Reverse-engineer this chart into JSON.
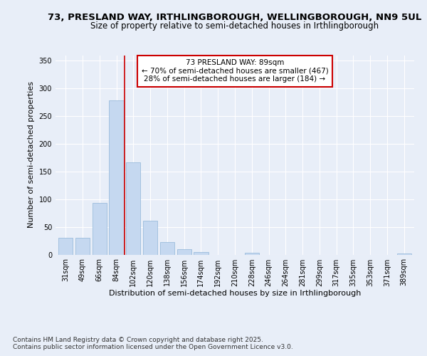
{
  "title_line1": "73, PRESLAND WAY, IRTHLINGBOROUGH, WELLINGBOROUGH, NN9 5UL",
  "title_line2": "Size of property relative to semi-detached houses in Irthlingborough",
  "xlabel": "Distribution of semi-detached houses by size in Irthlingborough",
  "ylabel": "Number of semi-detached properties",
  "categories": [
    "31sqm",
    "49sqm",
    "66sqm",
    "84sqm",
    "102sqm",
    "120sqm",
    "138sqm",
    "156sqm",
    "174sqm",
    "192sqm",
    "210sqm",
    "228sqm",
    "246sqm",
    "264sqm",
    "281sqm",
    "299sqm",
    "317sqm",
    "335sqm",
    "353sqm",
    "371sqm",
    "389sqm"
  ],
  "values": [
    30,
    30,
    93,
    278,
    167,
    61,
    22,
    10,
    5,
    0,
    0,
    3,
    0,
    0,
    0,
    0,
    0,
    0,
    0,
    0,
    2
  ],
  "bar_color": "#c5d8f0",
  "bar_edge_color": "#9bbcdc",
  "vline_x": 3.5,
  "vline_color": "#cc0000",
  "annotation_title": "73 PRESLAND WAY: 89sqm",
  "annotation_line2": "← 70% of semi-detached houses are smaller (467)",
  "annotation_line3": "28% of semi-detached houses are larger (184) →",
  "annotation_box_color": "#cc0000",
  "ylim": [
    0,
    360
  ],
  "yticks": [
    0,
    50,
    100,
    150,
    200,
    250,
    300,
    350
  ],
  "bg_color": "#e8eef8",
  "plot_bg_color": "#e8eef8",
  "footer_line1": "Contains HM Land Registry data © Crown copyright and database right 2025.",
  "footer_line2": "Contains public sector information licensed under the Open Government Licence v3.0.",
  "title_fontsize": 9.5,
  "subtitle_fontsize": 8.5,
  "axis_label_fontsize": 8,
  "tick_fontsize": 7,
  "annotation_fontsize": 7.5,
  "footer_fontsize": 6.5
}
